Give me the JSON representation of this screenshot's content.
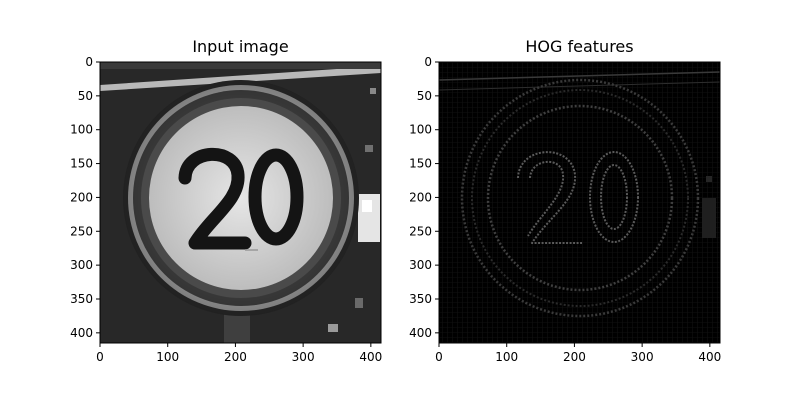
{
  "chart_data": [
    {
      "type": "image",
      "title": "Input image",
      "xlabel": "",
      "ylabel": "",
      "xlim": [
        0,
        415
      ],
      "ylim": [
        415,
        0
      ],
      "xticks": [
        0,
        100,
        200,
        300,
        400
      ],
      "yticks": [
        0,
        50,
        100,
        150,
        200,
        250,
        300,
        350,
        400
      ],
      "colormap": "gray",
      "sign_text": "20"
    },
    {
      "type": "image",
      "title": "HOG features",
      "xlabel": "",
      "ylabel": "",
      "xlim": [
        0,
        415
      ],
      "ylim": [
        415,
        0
      ],
      "xticks": [
        0,
        100,
        200,
        300,
        400
      ],
      "yticks": [
        0,
        50,
        100,
        150,
        200,
        250,
        300,
        350,
        400
      ],
      "colormap": "gray",
      "sign_text": "20"
    }
  ]
}
